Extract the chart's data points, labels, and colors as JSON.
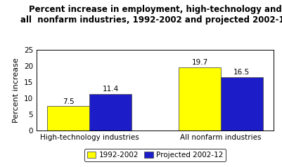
{
  "title_line1": "Percent increase in employment, high-technology and",
  "title_line2": "all  nonfarm industries, 1992-2002 and projected 2002-12",
  "categories": [
    "High-technology industries",
    "All nonfarm industries"
  ],
  "series": {
    "1992-2002": [
      7.5,
      19.7
    ],
    "Projected 2002-12": [
      11.4,
      16.5
    ]
  },
  "bar_colors": {
    "1992-2002": "#ffff00",
    "Projected 2002-12": "#1c1cc8"
  },
  "bar_edge_color": "#555555",
  "ylabel": "Percent increase",
  "ylim": [
    0,
    25
  ],
  "yticks": [
    0,
    5,
    10,
    15,
    20,
    25
  ],
  "legend_labels": [
    "1992-2002",
    "Projected 2002-12"
  ],
  "bar_width": 0.32,
  "title_fontsize": 8.5,
  "axis_label_fontsize": 8,
  "tick_fontsize": 7.5,
  "value_label_fontsize": 7.5,
  "legend_fontsize": 7.5,
  "background_color": "#ffffff",
  "plot_bg_color": "#ffffff"
}
